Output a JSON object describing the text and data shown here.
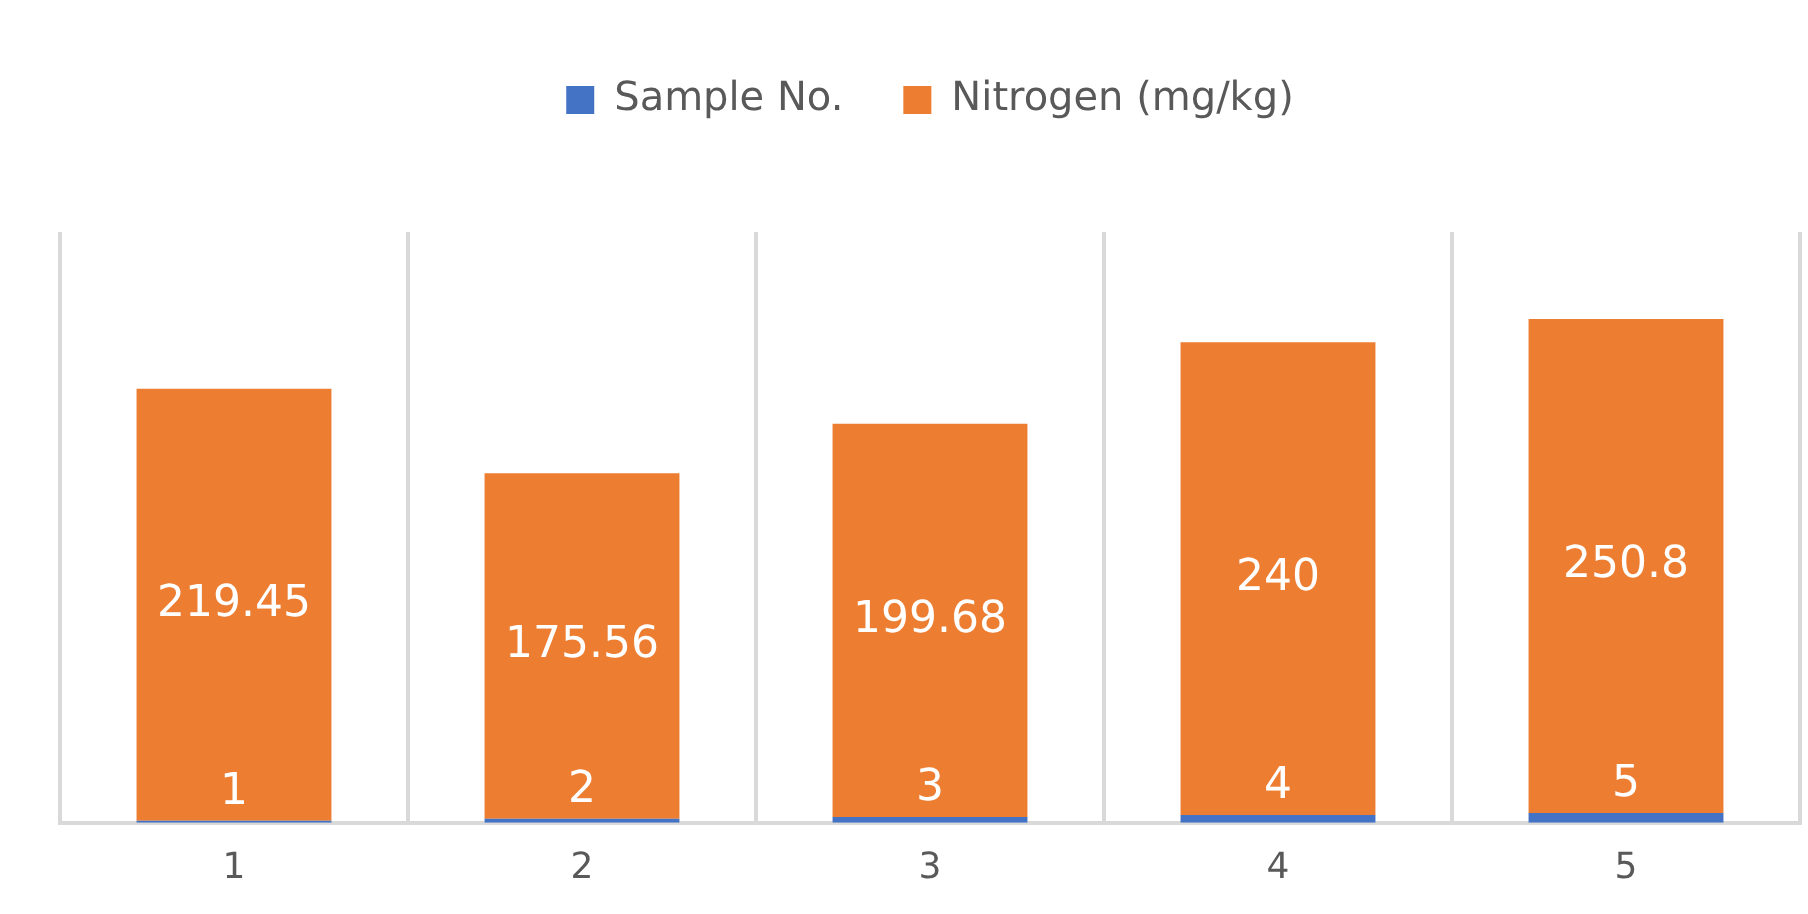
{
  "chart_data": {
    "type": "bar",
    "stacked": true,
    "categories": [
      "1",
      "2",
      "3",
      "4",
      "5"
    ],
    "series": [
      {
        "name": "Sample No.",
        "color": "#4472c4",
        "values": [
          1,
          2,
          3,
          4,
          5
        ]
      },
      {
        "name": "Nitrogen (mg/kg)",
        "color": "#ed7d31",
        "values": [
          219.45,
          175.56,
          199.68,
          240,
          250.8
        ]
      }
    ],
    "data_labels": true,
    "tick_labels": "x",
    "grid": "x",
    "legend": "top"
  }
}
